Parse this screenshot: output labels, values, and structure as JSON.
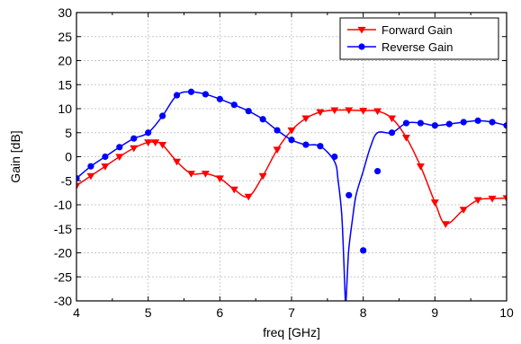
{
  "chart_data": {
    "type": "line",
    "xlabel": "freq [GHz]",
    "ylabel": "Gain [dB]",
    "xlim": [
      4,
      10
    ],
    "ylim": [
      -30,
      30
    ],
    "xticks": [
      "4",
      "5",
      "6",
      "7",
      "8",
      "9",
      "10"
    ],
    "yticks": [
      "30",
      "25",
      "20",
      "15",
      "10",
      "5",
      "0",
      "-5",
      "-10",
      "-15",
      "-20",
      "-25",
      "-30"
    ],
    "grid": true,
    "legend_position": "top-right",
    "series": [
      {
        "name": "Forward Gain",
        "color": "#ff0000",
        "marker": "triangle-down",
        "x": [
          4.0,
          4.2,
          4.4,
          4.6,
          4.8,
          5.0,
          5.1,
          5.2,
          5.4,
          5.6,
          5.8,
          6.0,
          6.2,
          6.4,
          6.6,
          6.8,
          7.0,
          7.2,
          7.4,
          7.6,
          7.8,
          8.0,
          8.2,
          8.4,
          8.6,
          8.8,
          9.0,
          9.15,
          9.4,
          9.6,
          9.8,
          10.0
        ],
        "y": [
          -6.0,
          -4.0,
          -2.0,
          0.0,
          1.8,
          3.0,
          3.0,
          2.5,
          -1.0,
          -3.5,
          -3.5,
          -4.5,
          -6.8,
          -8.3,
          -4.0,
          1.5,
          5.5,
          8.0,
          9.3,
          9.7,
          9.7,
          9.6,
          9.5,
          8.0,
          4.0,
          -2.0,
          -9.5,
          -14.0,
          -11.0,
          -9.0,
          -8.7,
          -8.6
        ]
      },
      {
        "name": "Reverse Gain",
        "color": "#0000ff",
        "marker": "circle",
        "x": [
          4.0,
          4.2,
          4.4,
          4.6,
          4.8,
          5.0,
          5.2,
          5.4,
          5.6,
          5.8,
          6.0,
          6.2,
          6.4,
          6.6,
          6.8,
          7.0,
          7.2,
          7.4,
          7.6,
          7.8,
          8.0,
          8.2,
          8.4,
          8.6,
          8.8,
          9.0,
          9.2,
          9.4,
          9.6,
          9.8,
          10.0
        ],
        "y": [
          -4.5,
          -2.0,
          0.0,
          2.0,
          3.8,
          5.0,
          8.5,
          12.8,
          13.5,
          13.0,
          12.0,
          10.8,
          9.5,
          7.8,
          5.5,
          3.5,
          2.5,
          2.2,
          0.0,
          -8.0,
          -19.5,
          -3.0,
          5.0,
          7.0,
          7.0,
          6.5,
          6.8,
          7.2,
          7.5,
          7.2,
          6.5
        ]
      }
    ],
    "curve_overrides": {
      "Reverse Gain": {
        "x": [
          7.6,
          7.65,
          7.7,
          7.73,
          7.75,
          7.76,
          7.78,
          7.8,
          7.85,
          7.9,
          8.0,
          8.1,
          8.2
        ],
        "y": [
          -1.0,
          -5.0,
          -12.0,
          -22.0,
          -30.0,
          -30.0,
          -24.0,
          -19.0,
          -13.0,
          -8.0,
          -3.0,
          2.0,
          5.0
        ]
      }
    }
  }
}
